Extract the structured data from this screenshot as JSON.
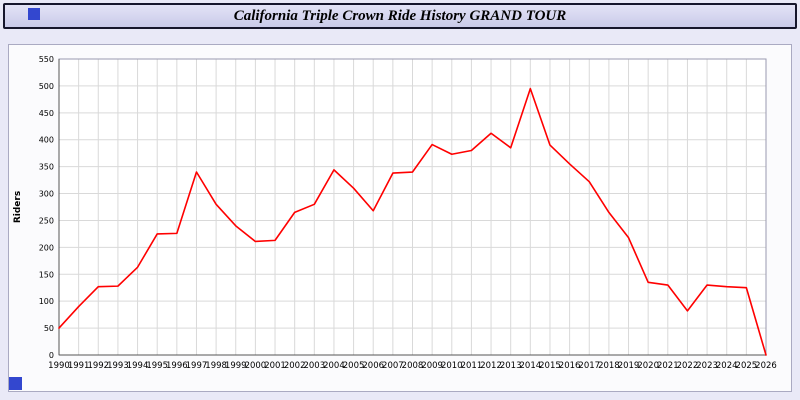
{
  "page": {
    "title": "California Triple Crown Ride History GRAND TOUR"
  },
  "colors": {
    "page_background": "#e9e9f7",
    "title_bar_background": "#d6d7f0",
    "title_bar_border": "#16162c",
    "blue_marker": "#3347cf",
    "line_color": "#ff0000",
    "grid_color": "#d9d9d9",
    "plot_background": "#ffffff",
    "axis_color": "#555555"
  },
  "chart_data": {
    "type": "line",
    "title": "California Triple Crown Ride History GRAND TOUR",
    "xlabel": "",
    "ylabel": "Riders",
    "ylim": [
      0,
      550
    ],
    "ytick_step": 50,
    "yticks": [
      "0",
      "50",
      "100",
      "150",
      "200",
      "250",
      "300",
      "350",
      "400",
      "450",
      "500",
      "550"
    ],
    "grid": true,
    "legend": "none",
    "line_color": "#ff0000",
    "categories": [
      1990,
      1991,
      1992,
      1993,
      1994,
      1995,
      1996,
      1997,
      1998,
      1999,
      2000,
      2001,
      2002,
      2003,
      2004,
      2005,
      2006,
      2007,
      2008,
      2009,
      2010,
      2011,
      2012,
      2013,
      2014,
      2015,
      2016,
      2017,
      2018,
      2019,
      2020,
      2021,
      2022,
      2023,
      2024,
      2025,
      2026
    ],
    "values": [
      50,
      90,
      127,
      128,
      163,
      225,
      226,
      340,
      280,
      240,
      211,
      213,
      265,
      280,
      344,
      310,
      268,
      338,
      340,
      391,
      373,
      380,
      412,
      385,
      495,
      390,
      355,
      322,
      265,
      218,
      135,
      130,
      82,
      130,
      127,
      125,
      0
    ]
  }
}
